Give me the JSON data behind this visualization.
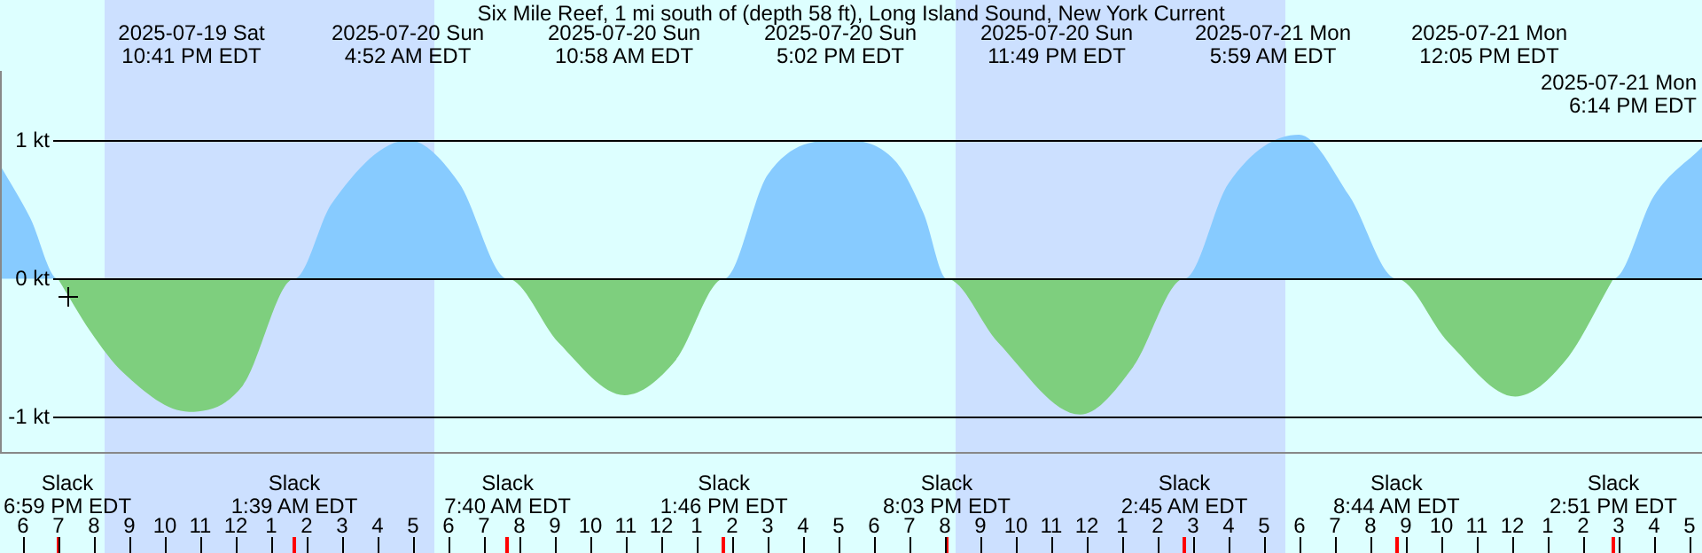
{
  "chart_data": {
    "type": "area",
    "title": "Six Mile Reef, 1 mi south of (depth 58 ft), Long Island Sound, New York Current",
    "series": [
      {
        "color": "#87cbff",
        "x": [
          "2025-07-19T17:21",
          "2025-07-19T18:12",
          "2025-07-19T18:59",
          "2025-07-20T01:39",
          "2025-07-20T02:42",
          "2025-07-20T04:52",
          "2025-07-20T06:18",
          "2025-07-20T07:40",
          "2025-07-20T13:46",
          "2025-07-20T15:00",
          "2025-07-20T17:02",
          "2025-07-20T18:36",
          "2025-07-20T19:24",
          "2025-07-20T20:03",
          "2025-07-21T02:45",
          "2025-07-21T04:00",
          "2025-07-21T05:59",
          "2025-07-21T07:24",
          "2025-07-21T08:44",
          "2025-07-21T14:51",
          "2025-07-21T16:00",
          "2025-07-21T17:21"
        ],
        "values": [
          0.82,
          0.44,
          0,
          0,
          0.54,
          1.0,
          0.69,
          0,
          0,
          0.75,
          1.0,
          0.85,
          0.47,
          0,
          0,
          0.69,
          1.04,
          0.6,
          0,
          0,
          0.6,
          0.95
        ]
      },
      {
        "color": "#7ecf7e",
        "x": [
          "2025-07-19T18:59",
          "2025-07-19T19:54",
          "2025-07-19T20:50",
          "2025-07-19T22:41",
          "2025-07-20T00:12",
          "2025-07-20T01:39",
          "2025-07-20T07:40",
          "2025-07-20T09:06",
          "2025-07-20T10:58",
          "2025-07-20T12:24",
          "2025-07-20T13:46",
          "2025-07-20T20:03",
          "2025-07-20T21:30",
          "2025-07-20T23:49",
          "2025-07-21T01:18",
          "2025-07-21T02:45",
          "2025-07-21T08:44",
          "2025-07-21T10:12",
          "2025-07-21T12:05",
          "2025-07-21T13:30",
          "2025-07-21T14:51"
        ],
        "values": [
          0,
          -0.38,
          -0.68,
          -0.96,
          -0.77,
          0,
          0,
          -0.46,
          -0.84,
          -0.59,
          0,
          0,
          -0.46,
          -0.98,
          -0.64,
          0,
          0,
          -0.46,
          -0.85,
          -0.59,
          0
        ]
      }
    ],
    "xlim": [
      "2025-07-19T17:21",
      "2025-07-21T17:21"
    ],
    "xticks": [
      {
        "value": "2025-07-19T18:00",
        "label": "6"
      },
      {
        "value": "2025-07-19T19:00",
        "label": "7"
      },
      {
        "value": "2025-07-19T20:00",
        "label": "8"
      },
      {
        "value": "2025-07-19T21:00",
        "label": "9"
      },
      {
        "value": "2025-07-19T22:00",
        "label": "10"
      },
      {
        "value": "2025-07-19T23:00",
        "label": "11"
      },
      {
        "value": "2025-07-20T00:00",
        "label": "12"
      },
      {
        "value": "2025-07-20T01:00",
        "label": "1"
      },
      {
        "value": "2025-07-20T02:00",
        "label": "2"
      },
      {
        "value": "2025-07-20T03:00",
        "label": "3"
      },
      {
        "value": "2025-07-20T04:00",
        "label": "4"
      },
      {
        "value": "2025-07-20T05:00",
        "label": "5"
      },
      {
        "value": "2025-07-20T06:00",
        "label": "6"
      },
      {
        "value": "2025-07-20T07:00",
        "label": "7"
      },
      {
        "value": "2025-07-20T08:00",
        "label": "8"
      },
      {
        "value": "2025-07-20T09:00",
        "label": "9"
      },
      {
        "value": "2025-07-20T10:00",
        "label": "10"
      },
      {
        "value": "2025-07-20T11:00",
        "label": "11"
      },
      {
        "value": "2025-07-20T12:00",
        "label": "12"
      },
      {
        "value": "2025-07-20T13:00",
        "label": "1"
      },
      {
        "value": "2025-07-20T14:00",
        "label": "2"
      },
      {
        "value": "2025-07-20T15:00",
        "label": "3"
      },
      {
        "value": "2025-07-20T16:00",
        "label": "4"
      },
      {
        "value": "2025-07-20T17:00",
        "label": "5"
      },
      {
        "value": "2025-07-20T18:00",
        "label": "6"
      },
      {
        "value": "2025-07-20T19:00",
        "label": "7"
      },
      {
        "value": "2025-07-20T20:00",
        "label": "8"
      },
      {
        "value": "2025-07-20T21:00",
        "label": "9"
      },
      {
        "value": "2025-07-20T22:00",
        "label": "10"
      },
      {
        "value": "2025-07-20T23:00",
        "label": "11"
      },
      {
        "value": "2025-07-21T00:00",
        "label": "12"
      },
      {
        "value": "2025-07-21T01:00",
        "label": "1"
      },
      {
        "value": "2025-07-21T02:00",
        "label": "2"
      },
      {
        "value": "2025-07-21T03:00",
        "label": "3"
      },
      {
        "value": "2025-07-21T04:00",
        "label": "4"
      },
      {
        "value": "2025-07-21T05:00",
        "label": "5"
      },
      {
        "value": "2025-07-21T06:00",
        "label": "6"
      },
      {
        "value": "2025-07-21T07:00",
        "label": "7"
      },
      {
        "value": "2025-07-21T08:00",
        "label": "8"
      },
      {
        "value": "2025-07-21T09:00",
        "label": "9"
      },
      {
        "value": "2025-07-21T10:00",
        "label": "10"
      },
      {
        "value": "2025-07-21T11:00",
        "label": "11"
      },
      {
        "value": "2025-07-21T12:00",
        "label": "12"
      },
      {
        "value": "2025-07-21T13:00",
        "label": "1"
      },
      {
        "value": "2025-07-21T14:00",
        "label": "2"
      },
      {
        "value": "2025-07-21T15:00",
        "label": "3"
      },
      {
        "value": "2025-07-21T16:00",
        "label": "4"
      },
      {
        "value": "2025-07-21T17:00",
        "label": "5"
      }
    ],
    "ylim": [
      -1.25,
      1.5
    ],
    "yticks": [
      {
        "value": 1,
        "label": "1 kt"
      },
      {
        "value": 0,
        "label": "0 kt"
      },
      {
        "value": -1,
        "label": "-1 kt"
      }
    ],
    "grid": "y",
    "bands": [
      {
        "axis": "x",
        "from": "2025-07-19T20:18",
        "to": "2025-07-20T05:36",
        "color": "#cce0ff"
      },
      {
        "axis": "x",
        "from": "2025-07-20T20:18",
        "to": "2025-07-21T05:36",
        "color": "#cce0ff"
      }
    ],
    "ref_lines": [
      {
        "axis": "x",
        "value": "2025-07-19T18:59",
        "label": "Slack\n6:59 PM EDT",
        "color": "#ff0000"
      },
      {
        "axis": "x",
        "value": "2025-07-20T01:39",
        "label": "Slack\n1:39 AM EDT",
        "color": "#ff0000"
      },
      {
        "axis": "x",
        "value": "2025-07-20T07:40",
        "label": "Slack\n7:40 AM EDT",
        "color": "#ff0000"
      },
      {
        "axis": "x",
        "value": "2025-07-20T13:46",
        "label": "Slack\n1:46 PM EDT",
        "color": "#ff0000"
      },
      {
        "axis": "x",
        "value": "2025-07-20T20:03",
        "label": "Slack\n8:03 PM EDT",
        "color": "#ff0000"
      },
      {
        "axis": "x",
        "value": "2025-07-21T02:45",
        "label": "Slack\n2:45 AM EDT",
        "color": "#ff0000"
      },
      {
        "axis": "x",
        "value": "2025-07-21T08:44",
        "label": "Slack\n8:44 AM EDT",
        "color": "#ff0000"
      },
      {
        "axis": "x",
        "value": "2025-07-21T14:51",
        "label": "Slack\n2:51 PM EDT",
        "color": "#ff0000"
      }
    ],
    "annotations": [
      "2025-07-19 Sat\n10:41 PM EDT",
      "2025-07-20 Sun\n4:52 AM EDT",
      "2025-07-20 Sun\n10:58 AM EDT",
      "2025-07-20 Sun\n5:02 PM EDT",
      "2025-07-20 Sun\n11:49 PM EDT",
      "2025-07-21 Mon\n5:59 AM EDT",
      "2025-07-21 Mon\n12:05 PM EDT",
      "2025-07-21 Mon\n6:14 PM EDT"
    ]
  }
}
